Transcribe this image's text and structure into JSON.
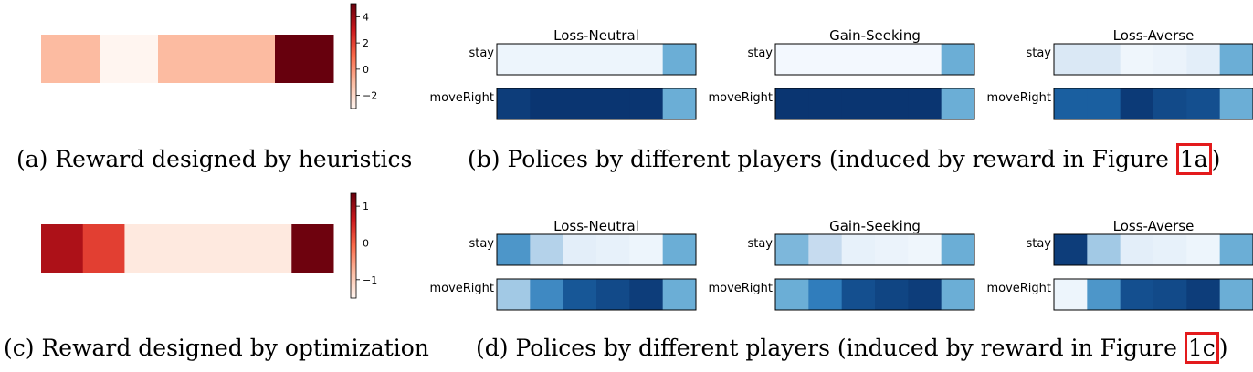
{
  "chart_data": [
    {
      "id": "a",
      "type": "heatmap",
      "rows": [
        [
          -1,
          -3,
          -1,
          -1,
          5
        ]
      ],
      "colormap": "Reds",
      "vmin": -3,
      "vmax": 5,
      "colorbar_ticks": [
        4,
        2,
        0,
        -2
      ],
      "colorbar_tick_labels": [
        "4",
        "2",
        "0",
        "−2"
      ],
      "caption": "(a) Reward designed by heuristics"
    },
    {
      "id": "b",
      "type": "heatmap",
      "colormap": "Blues",
      "vmin": 0,
      "vmax": 1,
      "row_labels": [
        "stay",
        "moveRight"
      ],
      "panels": [
        {
          "title": "Loss-Neutral",
          "stay": [
            0.05,
            0.05,
            0.05,
            0.05,
            0.05,
            0.5
          ],
          "moveRight": [
            0.95,
            0.98,
            0.98,
            0.98,
            0.98,
            0.5
          ]
        },
        {
          "title": "Gain-Seeking",
          "stay": [
            0.02,
            0.02,
            0.02,
            0.02,
            0.02,
            0.5
          ],
          "moveRight": [
            0.98,
            0.98,
            0.98,
            0.98,
            0.98,
            0.5
          ]
        },
        {
          "title": "Loss-Averse",
          "stay": [
            0.15,
            0.15,
            0.04,
            0.06,
            0.1,
            0.5
          ],
          "moveRight": [
            0.82,
            0.82,
            0.96,
            0.9,
            0.88,
            0.5
          ]
        }
      ],
      "caption_text": "(b) Polices by different players (induced by reward in Figure ",
      "caption_ref": "1a",
      "caption_end": ")"
    },
    {
      "id": "c",
      "type": "heatmap",
      "rows": [
        [
          0.85,
          0.3,
          -1.35,
          -1.35,
          -1.35,
          -1.35,
          1.3
        ]
      ],
      "colormap": "Reds",
      "vmin": -1.5,
      "vmax": 1.35,
      "colorbar_ticks": [
        1,
        0,
        -1
      ],
      "colorbar_tick_labels": [
        "1",
        "0",
        "−1"
      ],
      "caption": "(c) Reward designed by optimization"
    },
    {
      "id": "d",
      "type": "heatmap",
      "colormap": "Blues",
      "vmin": 0,
      "vmax": 1,
      "row_labels": [
        "stay",
        "moveRight"
      ],
      "panels": [
        {
          "title": "Loss-Neutral",
          "stay": [
            0.6,
            0.3,
            0.1,
            0.08,
            0.05,
            0.5
          ],
          "moveRight": [
            0.35,
            0.65,
            0.85,
            0.9,
            0.95,
            0.5
          ]
        },
        {
          "title": "Gain-Seeking",
          "stay": [
            0.45,
            0.25,
            0.08,
            0.06,
            0.04,
            0.5
          ],
          "moveRight": [
            0.5,
            0.7,
            0.88,
            0.92,
            0.95,
            0.5
          ]
        },
        {
          "title": "Loss-Averse",
          "stay": [
            0.95,
            0.35,
            0.1,
            0.08,
            0.05,
            0.5
          ],
          "moveRight": [
            0.05,
            0.6,
            0.88,
            0.9,
            0.95,
            0.5
          ]
        }
      ],
      "caption_text": "(d) Polices by different players (induced by reward in Figure ",
      "caption_ref": "1c",
      "caption_end": ")"
    }
  ]
}
